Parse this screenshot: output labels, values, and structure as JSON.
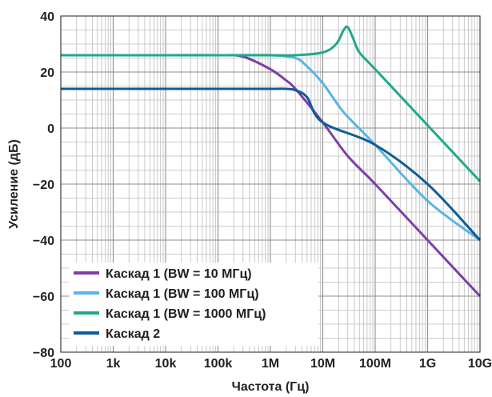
{
  "chart_data": {
    "type": "line",
    "xlabel": "Частота (Гц)",
    "ylabel": "Усиление (дБ)",
    "x_scale": "log",
    "xlim": [
      100,
      10000000000
    ],
    "ylim": [
      -80,
      40
    ],
    "x_ticks": [
      {
        "value": 100,
        "label": "100"
      },
      {
        "value": 1000,
        "label": "1k"
      },
      {
        "value": 10000,
        "label": "10k"
      },
      {
        "value": 100000,
        "label": "100k"
      },
      {
        "value": 1000000,
        "label": "1M"
      },
      {
        "value": 10000000,
        "label": "10M"
      },
      {
        "value": 100000000,
        "label": "100M"
      },
      {
        "value": 1000000000,
        "label": "1G"
      },
      {
        "value": 10000000000,
        "label": "10G"
      }
    ],
    "y_ticks": [
      {
        "value": 40,
        "label": "40"
      },
      {
        "value": 20,
        "label": "20"
      },
      {
        "value": 0,
        "label": "0"
      },
      {
        "value": -20,
        "label": "−20"
      },
      {
        "value": -40,
        "label": "−40"
      },
      {
        "value": -60,
        "label": "−60"
      },
      {
        "value": -80,
        "label": "−80"
      }
    ],
    "grid": true,
    "legend_position": "bottom-left",
    "series": [
      {
        "name": "Каскад 1 (BW = 10 МГц)",
        "color": "#7d3fa6",
        "x": [
          100,
          1000,
          10000,
          100000,
          300000,
          1000000,
          2000000,
          3000000,
          10000000,
          30000000,
          100000000,
          1000000000,
          10000000000
        ],
        "y": [
          26,
          26,
          26,
          26,
          25.5,
          21,
          17,
          14,
          2,
          -10,
          -20,
          -40,
          -60
        ]
      },
      {
        "name": "Каскад 1 (BW = 100 МГц)",
        "color": "#5bb4e5",
        "x": [
          100,
          1000,
          10000,
          100000,
          1000000,
          3000000,
          5000000,
          10000000,
          20000000,
          30000000,
          100000000,
          1000000000,
          10000000000
        ],
        "y": [
          26,
          26,
          26,
          26,
          26,
          25,
          22,
          16,
          8,
          4,
          -6,
          -26,
          -40
        ]
      },
      {
        "name": "Каскад 1 (BW = 1000 МГц)",
        "color": "#1faa8a",
        "x": [
          100,
          1000,
          10000,
          100000,
          1000000,
          3000000,
          10000000,
          18000000,
          25000000,
          30000000,
          38000000,
          50000000,
          100000000,
          1000000000,
          10000000000
        ],
        "y": [
          26,
          26,
          26,
          26,
          26,
          26,
          27,
          30,
          35,
          36,
          32,
          27,
          21,
          1,
          -19
        ]
      },
      {
        "name": "Каскад 2",
        "color": "#0f5c97",
        "x": [
          100,
          1000,
          10000,
          100000,
          1000000,
          2000000,
          3000000,
          5000000,
          10000000,
          100000000,
          1000000000,
          10000000000
        ],
        "y": [
          14,
          14,
          14,
          14,
          14,
          14,
          13.5,
          11,
          2,
          -6,
          -20,
          -40
        ]
      }
    ]
  }
}
